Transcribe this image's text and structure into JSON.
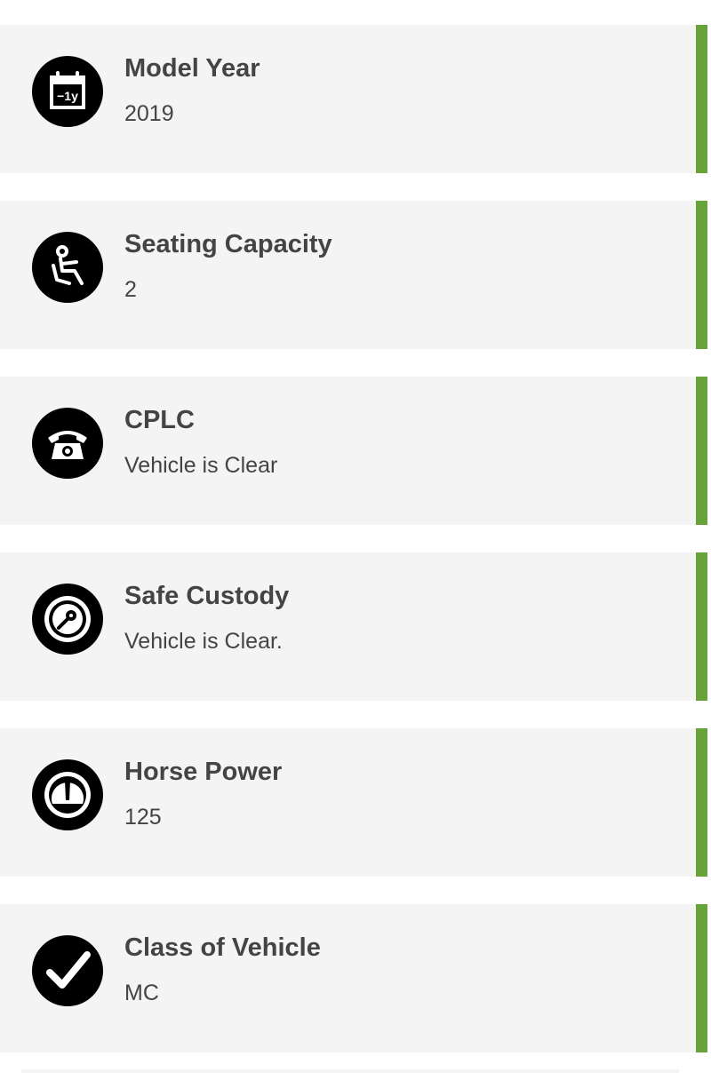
{
  "accent_color": "#67a33a",
  "items": [
    {
      "title": "Model Year",
      "value": "2019",
      "icon": "calendar-icon",
      "icon_text": "−1y"
    },
    {
      "title": "Seating Capacity",
      "value": "2",
      "icon": "seated-driver-icon"
    },
    {
      "title": "CPLC",
      "value": "Vehicle is Clear",
      "icon": "telephone-icon"
    },
    {
      "title": "Safe Custody",
      "value": "Vehicle is Clear.",
      "icon": "key-icon"
    },
    {
      "title": "Horse Power",
      "value": "125",
      "icon": "speedometer-icon"
    },
    {
      "title": "Class of Vehicle",
      "value": "MC",
      "icon": "checkmark-icon"
    }
  ]
}
